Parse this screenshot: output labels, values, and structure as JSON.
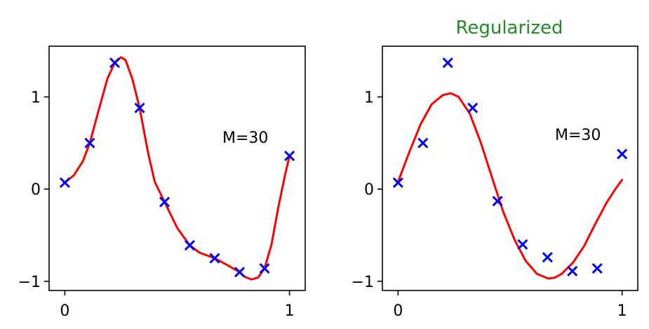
{
  "chart_data": [
    {
      "type": "line",
      "title": "",
      "xlabel": "",
      "ylabel": "",
      "xlim": [
        -0.07,
        1.07
      ],
      "ylim": [
        -1.1,
        1.55
      ],
      "xticks": [
        0,
        1
      ],
      "xtick_labels": [
        "0",
        "1"
      ],
      "yticks": [
        -1,
        0,
        1
      ],
      "ytick_labels": [
        "−1",
        "0",
        "1"
      ],
      "grid": false,
      "legend": "none",
      "annotation": "M=30",
      "points": {
        "marker": "x",
        "color": "#0000ee",
        "x": [
          0,
          0.111,
          0.222,
          0.333,
          0.444,
          0.556,
          0.667,
          0.778,
          0.889,
          1.0
        ],
        "y": [
          0.07,
          0.5,
          1.37,
          0.88,
          -0.14,
          -0.61,
          -0.75,
          -0.9,
          -0.86,
          0.36
        ]
      },
      "curve": {
        "color": "#ff0000",
        "x": [
          0.0,
          0.04,
          0.08,
          0.111,
          0.15,
          0.19,
          0.222,
          0.25,
          0.27,
          0.3,
          0.333,
          0.37,
          0.4,
          0.444,
          0.5,
          0.556,
          0.6,
          0.667,
          0.72,
          0.778,
          0.8,
          0.83,
          0.86,
          0.889,
          0.92,
          0.95,
          0.98,
          1.0
        ],
        "y": [
          0.07,
          0.15,
          0.3,
          0.5,
          0.85,
          1.2,
          1.37,
          1.43,
          1.4,
          1.2,
          0.88,
          0.4,
          0.08,
          -0.14,
          -0.42,
          -0.61,
          -0.69,
          -0.75,
          -0.82,
          -0.9,
          -0.95,
          -0.98,
          -0.96,
          -0.86,
          -0.6,
          -0.2,
          0.15,
          0.36
        ]
      }
    },
    {
      "type": "line",
      "title": "Regularized",
      "title_color": "#228b22",
      "xlabel": "",
      "ylabel": "",
      "xlim": [
        -0.07,
        1.07
      ],
      "ylim": [
        -1.1,
        1.55
      ],
      "xticks": [
        0,
        1
      ],
      "xtick_labels": [
        "0",
        "1"
      ],
      "yticks": [
        -1,
        0,
        1
      ],
      "ytick_labels": [
        "−1",
        "0",
        "1"
      ],
      "grid": false,
      "legend": "none",
      "annotation": "M=30",
      "points": {
        "marker": "x",
        "color": "#0000ee",
        "x": [
          0,
          0.111,
          0.222,
          0.333,
          0.444,
          0.556,
          0.667,
          0.778,
          0.889,
          1.0
        ],
        "y": [
          0.07,
          0.5,
          1.37,
          0.88,
          -0.13,
          -0.6,
          -0.74,
          -0.89,
          -0.86,
          0.38
        ]
      },
      "curve": {
        "color": "#ff0000",
        "x": [
          0.0,
          0.05,
          0.1,
          0.15,
          0.2,
          0.235,
          0.27,
          0.32,
          0.37,
          0.42,
          0.47,
          0.52,
          0.57,
          0.62,
          0.67,
          0.7,
          0.73,
          0.78,
          0.83,
          0.88,
          0.93,
          0.97,
          1.0
        ],
        "y": [
          0.08,
          0.4,
          0.7,
          0.92,
          1.02,
          1.04,
          1.0,
          0.82,
          0.5,
          0.12,
          -0.25,
          -0.55,
          -0.78,
          -0.92,
          -0.97,
          -0.96,
          -0.92,
          -0.8,
          -0.62,
          -0.38,
          -0.15,
          0.0,
          0.1
        ]
      }
    }
  ]
}
